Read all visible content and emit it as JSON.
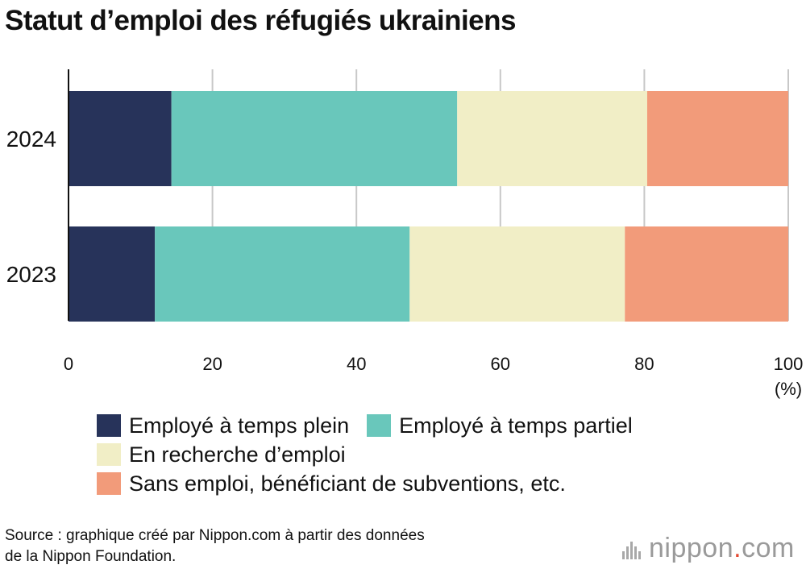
{
  "title": "Statut d’emploi des réfugiés ukrainiens",
  "chart_data": {
    "type": "bar",
    "orientation": "horizontal",
    "stacked": true,
    "title": "Statut d’emploi des réfugiés ukrainiens",
    "categories": [
      "2024",
      "2023"
    ],
    "series": [
      {
        "name": "Employé à temps plein",
        "color": "#27335a",
        "values": [
          14.3,
          12.0
        ]
      },
      {
        "name": "Employé à temps partiel",
        "color": "#69c7bb",
        "values": [
          39.7,
          35.4
        ]
      },
      {
        "name": "En recherche d’emploi",
        "color": "#f1eec6",
        "values": [
          26.4,
          29.9
        ]
      },
      {
        "name": "Sans emploi, bénéficiant de subventions, etc.",
        "color": "#f29b7a",
        "values": [
          19.6,
          22.7
        ]
      }
    ],
    "xlim": [
      0,
      100
    ],
    "xticks": [
      0,
      20,
      40,
      60,
      80,
      100
    ],
    "xlabel": "(%)",
    "ylabel": "",
    "grid": true,
    "legend_position": "bottom"
  },
  "source": {
    "line1": "Source : graphique créé par Nippon.com à partir des données",
    "line2": "de la Nippon Foundation."
  },
  "logo": {
    "name": "nippon",
    "dot": ".",
    "tld": "com"
  }
}
